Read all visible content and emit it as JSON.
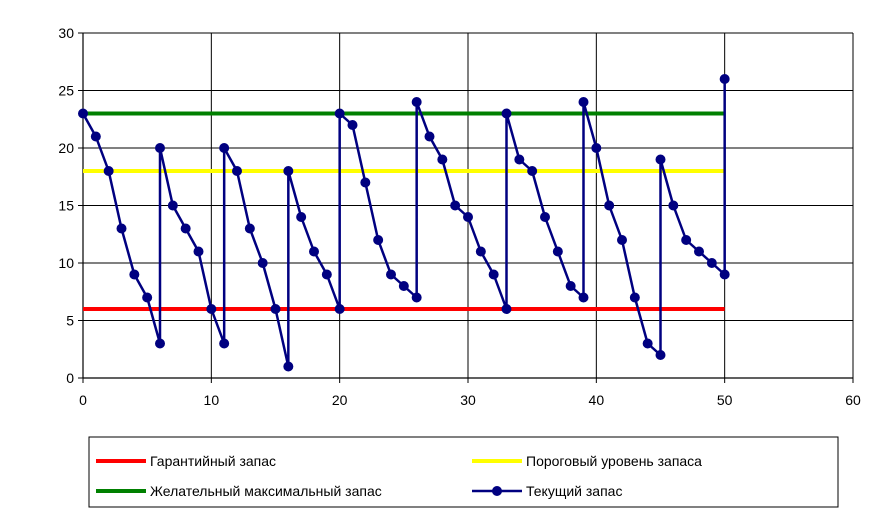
{
  "chart_data": {
    "type": "line",
    "xlim": [
      0,
      60
    ],
    "ylim": [
      0,
      30
    ],
    "x_ticks": [
      "0",
      "10",
      "20",
      "30",
      "40",
      "50",
      "60"
    ],
    "y_ticks": [
      "0",
      "5",
      "10",
      "15",
      "20",
      "25",
      "30"
    ],
    "grid": true,
    "legend_position": "bottom",
    "series": [
      {
        "name": "Гарантийный запас",
        "color": "#ff0000",
        "marker": "none",
        "x": [
          0,
          50
        ],
        "y": [
          6,
          6
        ]
      },
      {
        "name": "Пороговый уровень запаса",
        "color": "#ffff00",
        "marker": "none",
        "x": [
          0,
          50
        ],
        "y": [
          18,
          18
        ]
      },
      {
        "name": "Желательный максимальный запас",
        "color": "#008000",
        "marker": "none",
        "x": [
          0,
          50
        ],
        "y": [
          23,
          23
        ]
      },
      {
        "name": "Текущий запас",
        "color": "#000080",
        "marker": "circle",
        "x": [
          0,
          1,
          2,
          3,
          4,
          5,
          6,
          6,
          7,
          8,
          9,
          10,
          11,
          11,
          12,
          13,
          14,
          15,
          16,
          16,
          17,
          18,
          19,
          20,
          20,
          21,
          22,
          23,
          24,
          25,
          26,
          26,
          27,
          28,
          29,
          30,
          31,
          32,
          33,
          33,
          34,
          35,
          36,
          37,
          38,
          39,
          39,
          40,
          41,
          42,
          43,
          44,
          45,
          45,
          46,
          47,
          48,
          49,
          50,
          50
        ],
        "y": [
          23,
          21,
          18,
          13,
          9,
          7,
          3,
          20,
          15,
          13,
          11,
          6,
          3,
          20,
          18,
          13,
          10,
          6,
          1,
          18,
          14,
          11,
          9,
          6,
          23,
          22,
          17,
          12,
          9,
          8,
          7,
          24,
          21,
          19,
          15,
          14,
          11,
          9,
          6,
          23,
          19,
          18,
          14,
          11,
          8,
          7,
          24,
          20,
          15,
          12,
          7,
          3,
          2,
          19,
          15,
          12,
          11,
          10,
          9,
          26
        ]
      }
    ]
  }
}
